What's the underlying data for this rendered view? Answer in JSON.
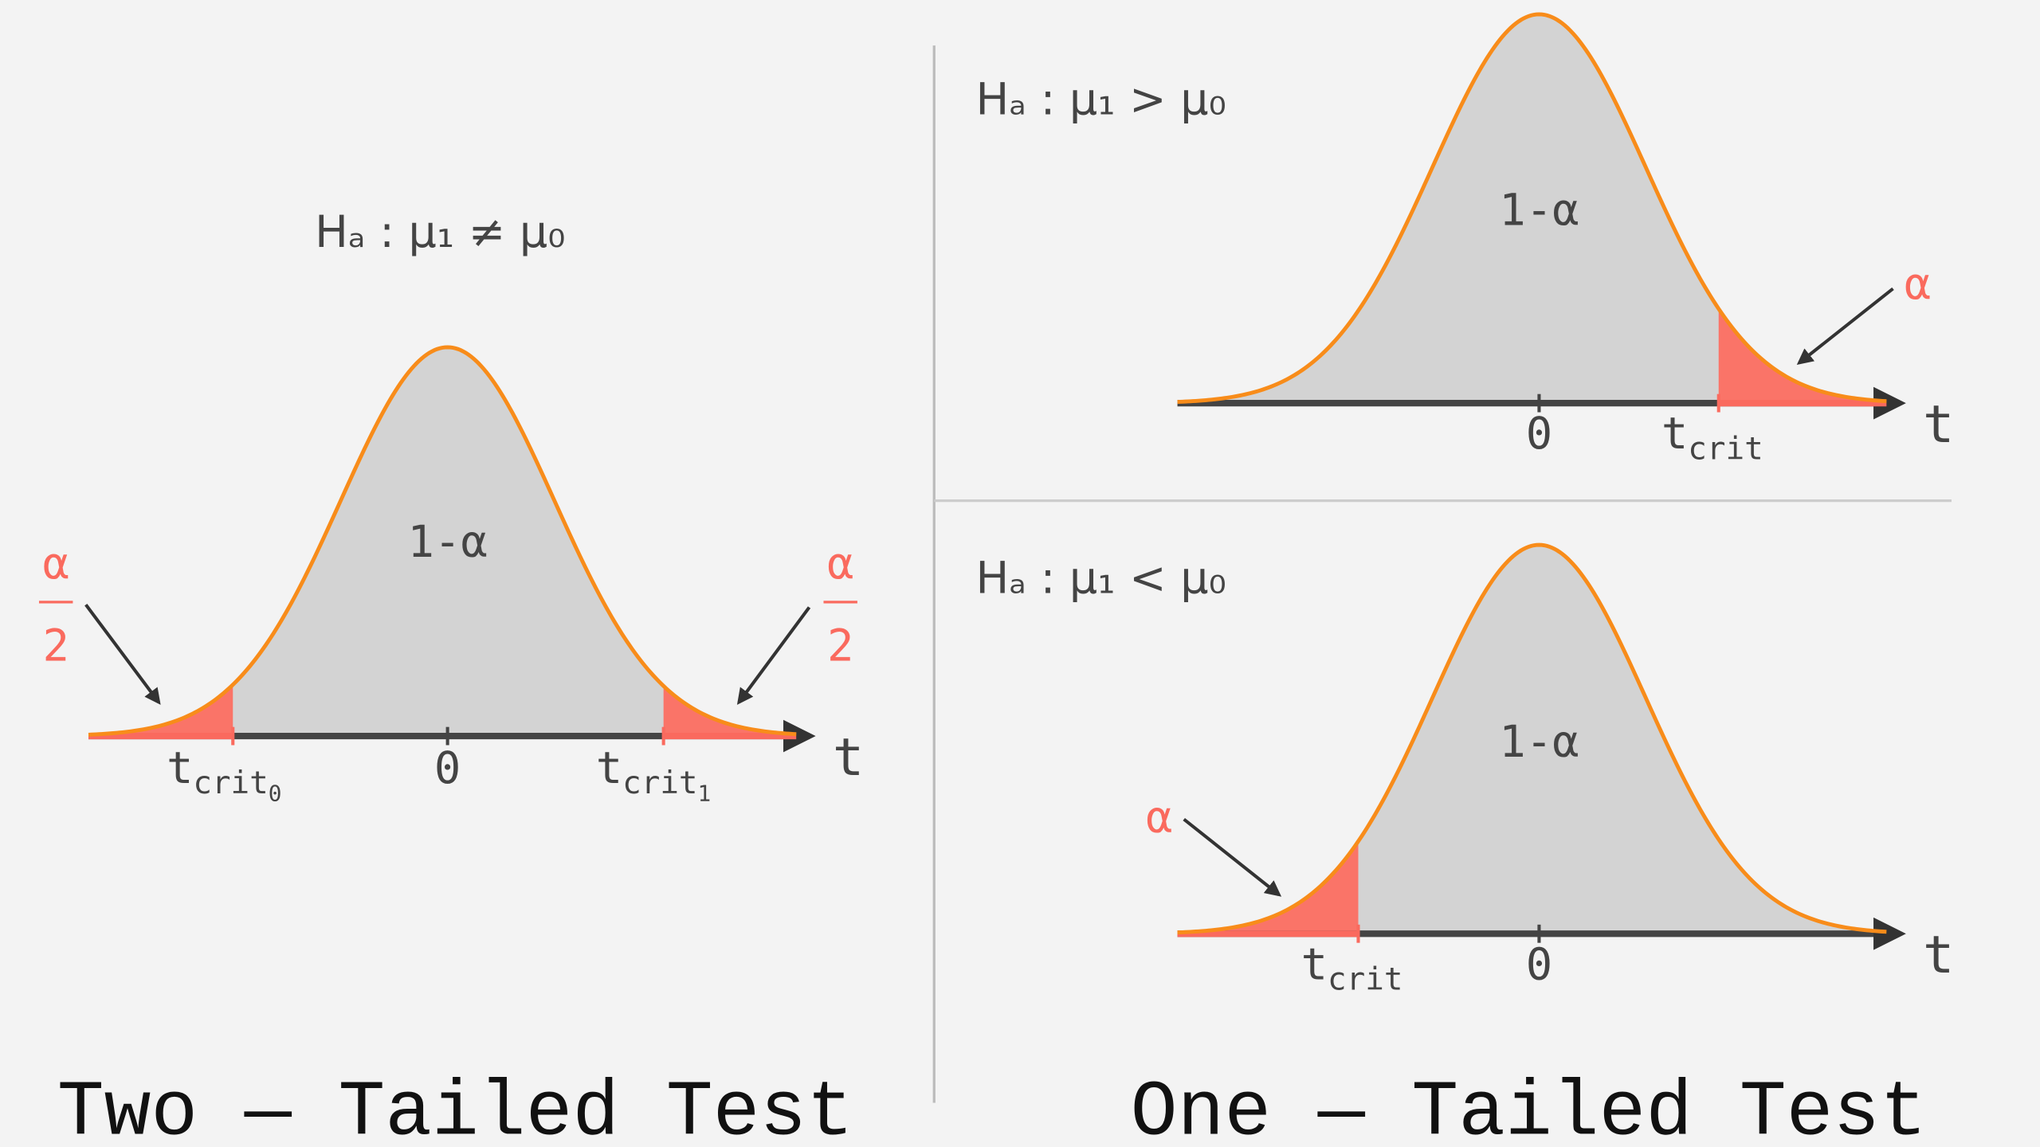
{
  "two_tailed": {
    "hypothesis": "Hₐ : μ₁ ≠ μ₀",
    "center_label": "1-α",
    "zero": "0",
    "axis": "t",
    "alpha_num": "α",
    "alpha_den": "2",
    "crit_left": {
      "t": "t",
      "sub": "crit",
      "index": "0"
    },
    "crit_right": {
      "t": "t",
      "sub": "crit",
      "index": "1"
    },
    "title": "Two — Tailed Test"
  },
  "one_tailed": {
    "upper": {
      "hypothesis": "Hₐ : μ₁ > μ₀",
      "center_label": "1-α",
      "zero": "0",
      "axis": "t",
      "alpha": "α",
      "crit": {
        "t": "t",
        "sub": "crit"
      }
    },
    "lower": {
      "hypothesis": "Hₐ : μ₁ < μ₀",
      "center_label": "1-α",
      "zero": "0",
      "axis": "t",
      "alpha": "α",
      "crit": {
        "t": "t",
        "sub": "crit"
      }
    },
    "title": "One — Tailed Test"
  }
}
